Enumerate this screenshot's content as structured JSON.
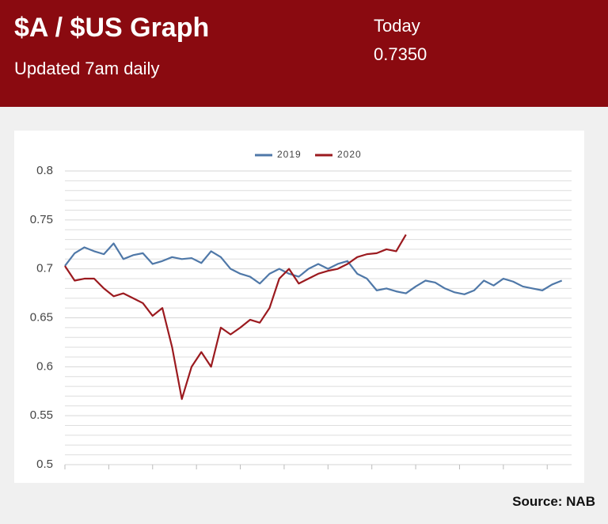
{
  "header": {
    "title": "$A / $US Graph",
    "subtitle": "Updated 7am daily",
    "today_label": "Today",
    "today_value": "0.7350"
  },
  "source": "Source: NAB",
  "chart_data": {
    "type": "line",
    "legend": "top",
    "grid": true,
    "x": [
      1,
      2,
      3,
      4,
      5,
      6,
      7,
      8,
      9,
      10,
      11,
      12,
      13,
      14,
      15,
      16,
      17,
      18,
      19,
      20,
      21,
      22,
      23,
      24,
      25,
      26,
      27,
      28,
      29,
      30,
      31,
      32,
      33,
      34,
      35,
      36,
      37,
      38,
      39,
      40,
      41,
      42,
      43,
      44,
      45,
      46,
      47,
      48,
      49,
      50,
      51,
      52
    ],
    "xlim": [
      1,
      53
    ],
    "xticks": [
      1,
      5.5,
      10,
      14.5,
      19,
      23.5,
      28,
      32.5,
      37,
      41.5,
      46,
      50.5
    ],
    "ylim": [
      0.5,
      0.8
    ],
    "yticks": [
      0.5,
      0.55,
      0.6,
      0.65,
      0.7,
      0.75,
      0.8
    ],
    "minor_yticks": [
      0.51,
      0.52,
      0.53,
      0.54,
      0.56,
      0.57,
      0.58,
      0.59,
      0.61,
      0.62,
      0.63,
      0.64,
      0.66,
      0.67,
      0.68,
      0.69,
      0.71,
      0.72,
      0.73,
      0.74,
      0.76,
      0.77,
      0.78,
      0.79
    ],
    "series": [
      {
        "name": "2019",
        "color": "#4f78a8",
        "values": [
          0.703,
          0.716,
          0.722,
          0.718,
          0.715,
          0.726,
          0.71,
          0.714,
          0.716,
          0.705,
          0.708,
          0.712,
          0.71,
          0.711,
          0.706,
          0.718,
          0.712,
          0.7,
          0.695,
          0.692,
          0.685,
          0.695,
          0.7,
          0.695,
          0.692,
          0.7,
          0.705,
          0.7,
          0.705,
          0.708,
          0.695,
          0.69,
          0.678,
          0.68,
          0.677,
          0.675,
          0.682,
          0.688,
          0.686,
          0.68,
          0.676,
          0.674,
          0.678,
          0.688,
          0.683,
          0.69,
          0.687,
          0.682,
          0.68,
          0.678,
          0.684,
          0.688
        ]
      },
      {
        "name": "2020",
        "color": "#9b1a1f",
        "values": [
          0.703,
          0.688,
          0.69,
          0.69,
          0.68,
          0.672,
          0.675,
          0.67,
          0.665,
          0.652,
          0.66,
          0.62,
          0.567,
          0.6,
          0.615,
          0.6,
          0.64,
          0.633,
          0.64,
          0.648,
          0.645,
          0.66,
          0.69,
          0.7,
          0.685,
          0.69,
          0.695,
          0.698,
          0.7,
          0.705,
          0.712,
          0.715,
          0.716,
          0.72,
          0.718,
          0.735,
          null,
          null,
          null,
          null,
          null,
          null,
          null,
          null,
          null,
          null,
          null,
          null,
          null,
          null,
          null,
          null
        ]
      }
    ]
  }
}
